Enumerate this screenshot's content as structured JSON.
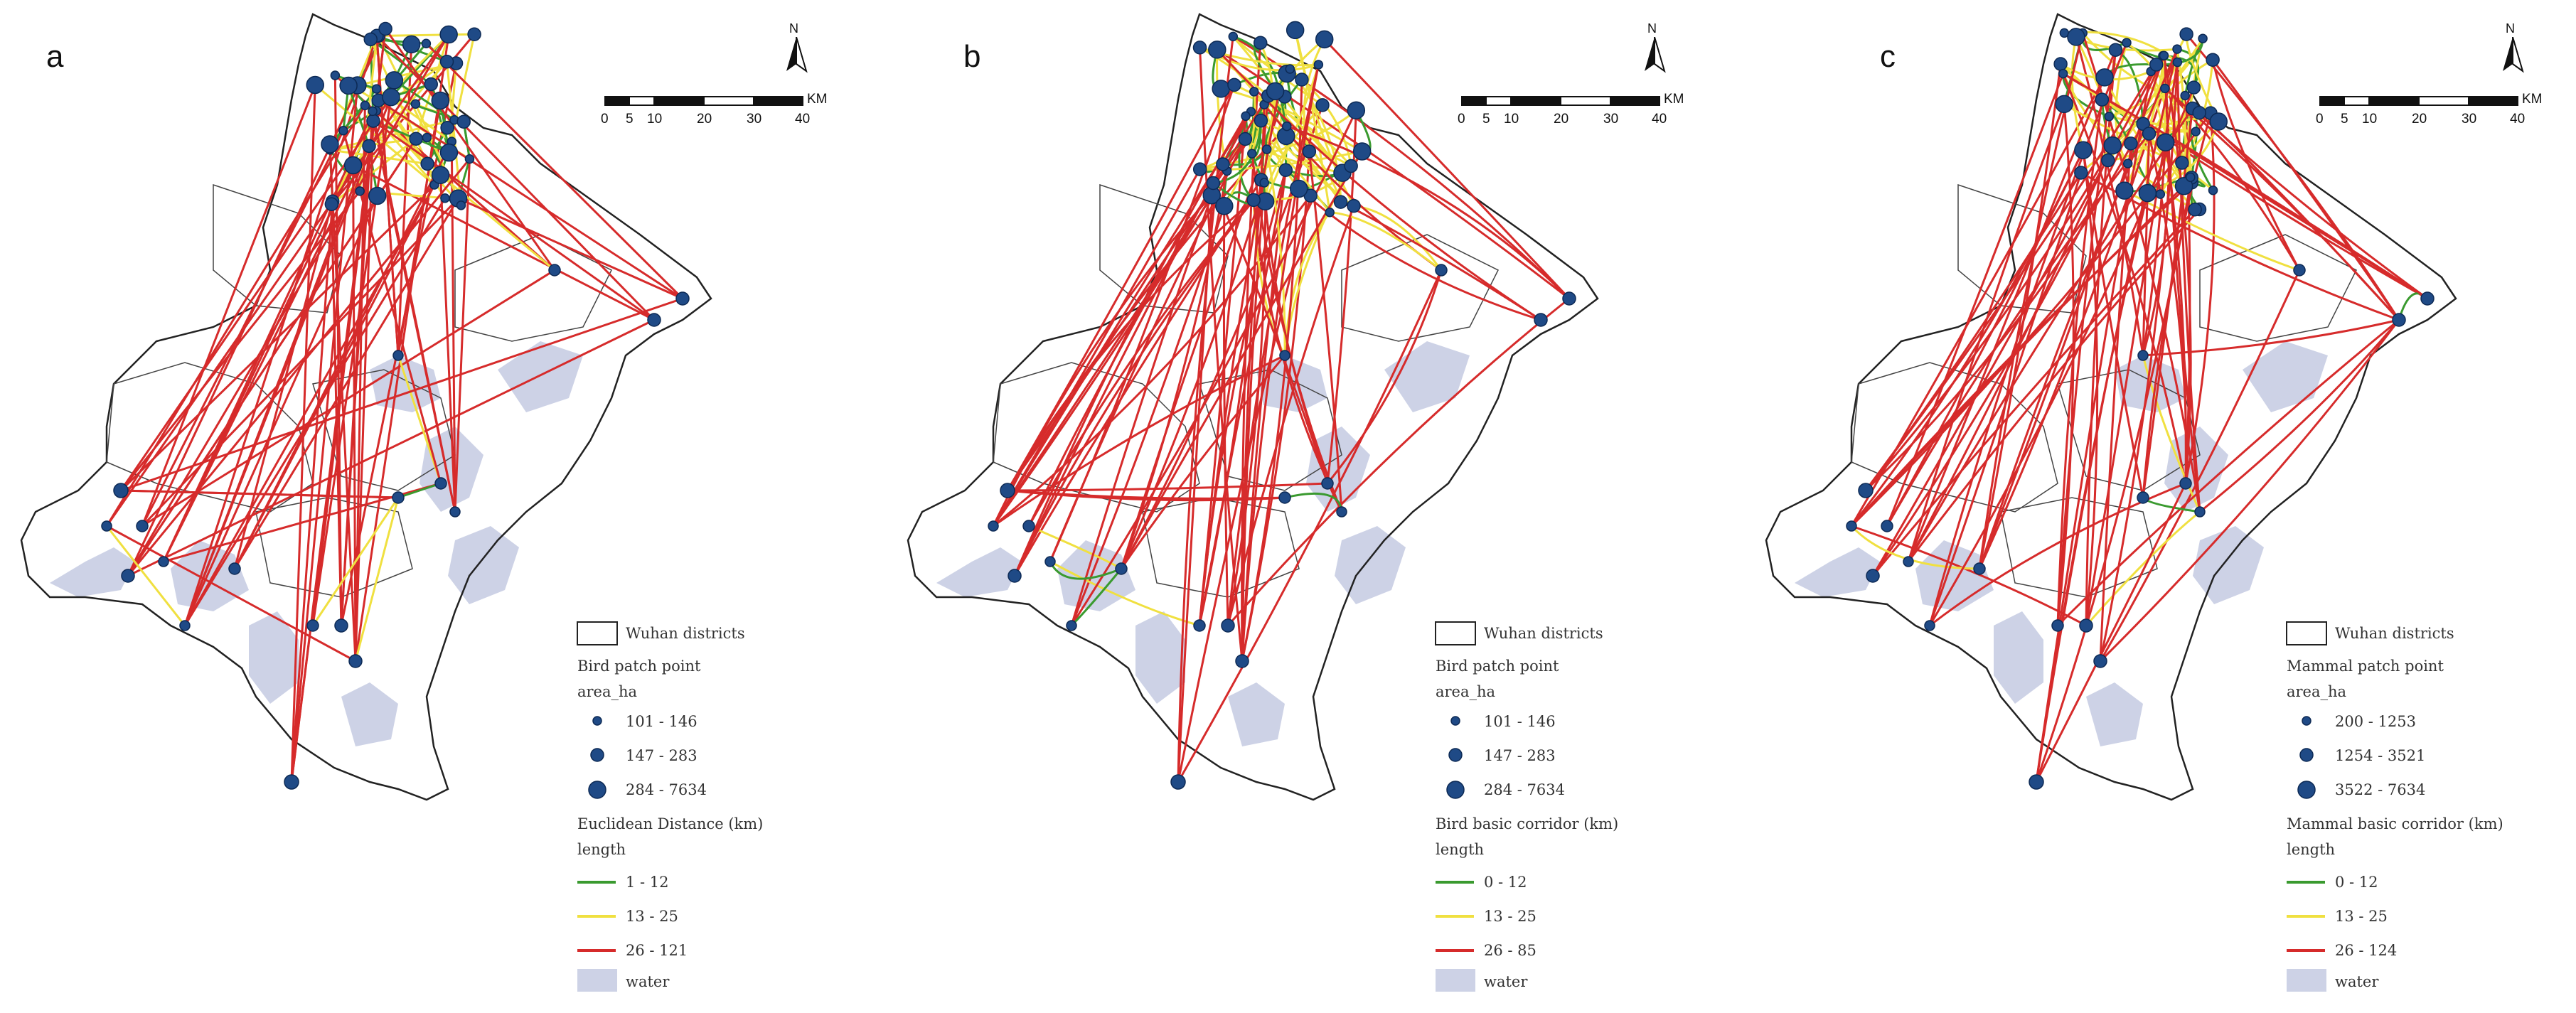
{
  "panels": [
    {
      "label": "a",
      "scale": {
        "ticks": [
          "0",
          "5",
          "10",
          "20",
          "30",
          "40"
        ],
        "unit": "KM"
      },
      "north": "N",
      "legend": {
        "districts": "Wuhan districts",
        "patch_title": "Bird patch point",
        "area_title": "area_ha",
        "area_classes": [
          "101 - 146",
          "147 - 283",
          "284 - 7634"
        ],
        "corridor_title": "Euclidean Distance (km)",
        "length_title": "length",
        "length_classes": [
          "1 - 12",
          "13 - 25",
          "26 - 121"
        ],
        "water": "water"
      }
    },
    {
      "label": "b",
      "scale": {
        "ticks": [
          "0",
          "5",
          "10",
          "20",
          "30",
          "40"
        ],
        "unit": "KM"
      },
      "north": "N",
      "legend": {
        "districts": "Wuhan districts",
        "patch_title": "Bird patch point",
        "area_title": "area_ha",
        "area_classes": [
          "101 - 146",
          "147 - 283",
          "284 - 7634"
        ],
        "corridor_title": "Bird basic corridor (km)",
        "length_title": "length",
        "length_classes": [
          "0 - 12",
          "13 - 25",
          "26 - 85"
        ],
        "water": "water"
      }
    },
    {
      "label": "c",
      "scale": {
        "ticks": [
          "0",
          "5",
          "10",
          "20",
          "30",
          "40"
        ],
        "unit": "KM"
      },
      "north": "N",
      "legend": {
        "districts": "Wuhan districts",
        "patch_title": "Mammal patch point",
        "area_title": "area_ha",
        "area_classes": [
          "200 - 1253",
          "1254 - 3521",
          "3522 - 7634"
        ],
        "corridor_title": "Mammal basic corridor (km)",
        "length_title": "length",
        "length_classes": [
          "0 - 12",
          "13 - 25",
          "26 - 124"
        ],
        "water": "water"
      }
    }
  ],
  "colors": {
    "short": "#3a9a2f",
    "medium": "#f0e040",
    "long": "#d62b2b",
    "water": "#cdd2e6",
    "node": "#1f4a86",
    "outline": "#222222"
  }
}
